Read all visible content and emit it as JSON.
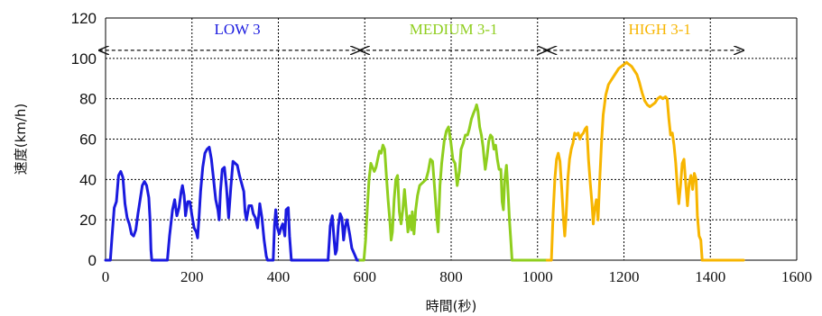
{
  "chart_data": {
    "type": "line",
    "title": "",
    "xlabel": "時間(秒)",
    "ylabel": "速度(km/h)",
    "xlim": [
      0,
      1600
    ],
    "ylim": [
      0,
      120
    ],
    "x_ticks": [
      0,
      200,
      400,
      600,
      800,
      1000,
      1200,
      1400,
      1600
    ],
    "y_ticks": [
      0,
      20,
      40,
      60,
      80,
      100,
      120
    ],
    "grid": true,
    "legend": "none",
    "phases": [
      {
        "name": "LOW 3",
        "start": 0,
        "end": 589,
        "color": "#1a1adf"
      },
      {
        "name": "MEDIUM 3-1",
        "start": 589,
        "end": 1022,
        "color": "#8fce1e"
      },
      {
        "name": "HIGH 3-1",
        "start": 1022,
        "end": 1477,
        "color": "#f7b500"
      }
    ],
    "series": [
      {
        "phase": "LOW 3",
        "color": "#1a1adf",
        "points": [
          [
            0,
            0
          ],
          [
            11,
            0
          ],
          [
            15,
            12
          ],
          [
            20,
            26
          ],
          [
            25,
            29
          ],
          [
            30,
            42
          ],
          [
            35,
            44
          ],
          [
            40,
            41
          ],
          [
            45,
            28
          ],
          [
            50,
            21
          ],
          [
            55,
            18
          ],
          [
            60,
            13
          ],
          [
            65,
            12
          ],
          [
            70,
            15
          ],
          [
            75,
            23
          ],
          [
            80,
            30
          ],
          [
            85,
            37
          ],
          [
            90,
            39
          ],
          [
            95,
            37
          ],
          [
            100,
            31
          ],
          [
            103,
            20
          ],
          [
            105,
            5
          ],
          [
            107,
            0
          ],
          [
            143,
            0
          ],
          [
            148,
            12
          ],
          [
            155,
            25
          ],
          [
            160,
            30
          ],
          [
            165,
            22
          ],
          [
            170,
            26
          ],
          [
            175,
            34
          ],
          [
            178,
            37
          ],
          [
            182,
            32
          ],
          [
            185,
            22
          ],
          [
            190,
            29
          ],
          [
            195,
            29
          ],
          [
            200,
            22
          ],
          [
            205,
            16
          ],
          [
            210,
            14
          ],
          [
            213,
            11
          ],
          [
            216,
            20
          ],
          [
            220,
            34
          ],
          [
            225,
            46
          ],
          [
            230,
            53
          ],
          [
            235,
            55
          ],
          [
            240,
            56
          ],
          [
            245,
            50
          ],
          [
            250,
            40
          ],
          [
            255,
            30
          ],
          [
            260,
            25
          ],
          [
            263,
            20
          ],
          [
            266,
            34
          ],
          [
            270,
            45
          ],
          [
            275,
            46
          ],
          [
            280,
            36
          ],
          [
            285,
            21
          ],
          [
            290,
            36
          ],
          [
            295,
            49
          ],
          [
            300,
            48
          ],
          [
            305,
            47
          ],
          [
            310,
            42
          ],
          [
            315,
            38
          ],
          [
            320,
            34
          ],
          [
            323,
            24
          ],
          [
            326,
            20
          ],
          [
            332,
            27
          ],
          [
            338,
            27
          ],
          [
            342,
            23
          ],
          [
            347,
            21
          ],
          [
            352,
            16
          ],
          [
            357,
            28
          ],
          [
            362,
            21
          ],
          [
            367,
            10
          ],
          [
            372,
            2
          ],
          [
            375,
            0
          ],
          [
            388,
            0
          ],
          [
            391,
            17
          ],
          [
            394,
            25
          ],
          [
            398,
            16
          ],
          [
            402,
            13
          ],
          [
            406,
            16
          ],
          [
            410,
            18
          ],
          [
            415,
            12
          ],
          [
            418,
            25
          ],
          [
            423,
            26
          ],
          [
            426,
            12
          ],
          [
            430,
            0
          ],
          [
            515,
            0
          ],
          [
            520,
            17
          ],
          [
            525,
            22
          ],
          [
            529,
            10
          ],
          [
            532,
            3
          ],
          [
            535,
            5
          ],
          [
            539,
            17
          ],
          [
            543,
            23
          ],
          [
            547,
            21
          ],
          [
            551,
            10
          ],
          [
            555,
            17
          ],
          [
            559,
            20
          ],
          [
            565,
            13
          ],
          [
            570,
            6
          ],
          [
            576,
            3
          ],
          [
            582,
            0
          ],
          [
            589,
            0
          ]
        ]
      },
      {
        "phase": "MEDIUM 3-1",
        "color": "#8fce1e",
        "points": [
          [
            589,
            0
          ],
          [
            598,
            0
          ],
          [
            602,
            10
          ],
          [
            606,
            26
          ],
          [
            610,
            40
          ],
          [
            614,
            48
          ],
          [
            618,
            46
          ],
          [
            622,
            44
          ],
          [
            626,
            46
          ],
          [
            630,
            50
          ],
          [
            634,
            54
          ],
          [
            638,
            53
          ],
          [
            642,
            57
          ],
          [
            646,
            55
          ],
          [
            650,
            42
          ],
          [
            654,
            30
          ],
          [
            658,
            20
          ],
          [
            661,
            10
          ],
          [
            664,
            14
          ],
          [
            668,
            30
          ],
          [
            672,
            40
          ],
          [
            676,
            42
          ],
          [
            680,
            24
          ],
          [
            684,
            18
          ],
          [
            688,
            25
          ],
          [
            692,
            35
          ],
          [
            696,
            25
          ],
          [
            700,
            14
          ],
          [
            704,
            22
          ],
          [
            708,
            15
          ],
          [
            710,
            24
          ],
          [
            714,
            13
          ],
          [
            718,
            25
          ],
          [
            722,
            32
          ],
          [
            727,
            37
          ],
          [
            732,
            38
          ],
          [
            737,
            39
          ],
          [
            742,
            40
          ],
          [
            747,
            44
          ],
          [
            752,
            50
          ],
          [
            757,
            49
          ],
          [
            762,
            35
          ],
          [
            767,
            20
          ],
          [
            770,
            14
          ],
          [
            774,
            37
          ],
          [
            778,
            48
          ],
          [
            784,
            59
          ],
          [
            789,
            64
          ],
          [
            794,
            66
          ],
          [
            799,
            59
          ],
          [
            804,
            50
          ],
          [
            809,
            48
          ],
          [
            814,
            37
          ],
          [
            819,
            44
          ],
          [
            823,
            55
          ],
          [
            828,
            58
          ],
          [
            833,
            62
          ],
          [
            838,
            62
          ],
          [
            842,
            65
          ],
          [
            847,
            70
          ],
          [
            852,
            73
          ],
          [
            856,
            75
          ],
          [
            859,
            77
          ],
          [
            862,
            74
          ],
          [
            866,
            66
          ],
          [
            870,
            62
          ],
          [
            874,
            56
          ],
          [
            876,
            51
          ],
          [
            879,
            45
          ],
          [
            883,
            51
          ],
          [
            887,
            59
          ],
          [
            891,
            62
          ],
          [
            895,
            61
          ],
          [
            899,
            55
          ],
          [
            903,
            57
          ],
          [
            907,
            50
          ],
          [
            911,
            45
          ],
          [
            915,
            45
          ],
          [
            918,
            29
          ],
          [
            921,
            25
          ],
          [
            924,
            40
          ],
          [
            928,
            47
          ],
          [
            931,
            37
          ],
          [
            935,
            20
          ],
          [
            938,
            10
          ],
          [
            941,
            0
          ],
          [
            1022,
            0
          ]
        ]
      },
      {
        "phase": "HIGH 3-1",
        "color": "#f7b500",
        "points": [
          [
            1022,
            0
          ],
          [
            1032,
            0
          ],
          [
            1036,
            23
          ],
          [
            1040,
            40
          ],
          [
            1044,
            50
          ],
          [
            1048,
            53
          ],
          [
            1052,
            49
          ],
          [
            1056,
            35
          ],
          [
            1060,
            20
          ],
          [
            1063,
            12
          ],
          [
            1066,
            21
          ],
          [
            1070,
            40
          ],
          [
            1074,
            50
          ],
          [
            1078,
            55
          ],
          [
            1082,
            58
          ],
          [
            1086,
            63
          ],
          [
            1090,
            62
          ],
          [
            1094,
            63
          ],
          [
            1098,
            60
          ],
          [
            1102,
            62
          ],
          [
            1106,
            63
          ],
          [
            1110,
            65
          ],
          [
            1114,
            66
          ],
          [
            1118,
            50
          ],
          [
            1122,
            38
          ],
          [
            1126,
            28
          ],
          [
            1129,
            18
          ],
          [
            1132,
            25
          ],
          [
            1136,
            30
          ],
          [
            1140,
            20
          ],
          [
            1144,
            40
          ],
          [
            1148,
            58
          ],
          [
            1152,
            72
          ],
          [
            1158,
            82
          ],
          [
            1164,
            87
          ],
          [
            1170,
            89
          ],
          [
            1176,
            91
          ],
          [
            1182,
            93
          ],
          [
            1188,
            95
          ],
          [
            1194,
            96
          ],
          [
            1200,
            97
          ],
          [
            1206,
            98
          ],
          [
            1212,
            97
          ],
          [
            1218,
            96
          ],
          [
            1224,
            94
          ],
          [
            1230,
            92
          ],
          [
            1236,
            88
          ],
          [
            1242,
            83
          ],
          [
            1248,
            79
          ],
          [
            1254,
            77
          ],
          [
            1260,
            76
          ],
          [
            1266,
            77
          ],
          [
            1272,
            78
          ],
          [
            1278,
            80
          ],
          [
            1284,
            81
          ],
          [
            1290,
            80
          ],
          [
            1296,
            81
          ],
          [
            1300,
            80
          ],
          [
            1304,
            70
          ],
          [
            1308,
            62
          ],
          [
            1312,
            63
          ],
          [
            1316,
            57
          ],
          [
            1320,
            48
          ],
          [
            1324,
            35
          ],
          [
            1327,
            28
          ],
          [
            1331,
            37
          ],
          [
            1335,
            48
          ],
          [
            1339,
            50
          ],
          [
            1343,
            38
          ],
          [
            1347,
            27
          ],
          [
            1351,
            38
          ],
          [
            1355,
            42
          ],
          [
            1359,
            35
          ],
          [
            1363,
            43
          ],
          [
            1367,
            40
          ],
          [
            1370,
            22
          ],
          [
            1374,
            12
          ],
          [
            1378,
            10
          ],
          [
            1381,
            0
          ],
          [
            1477,
            0
          ]
        ]
      }
    ]
  }
}
